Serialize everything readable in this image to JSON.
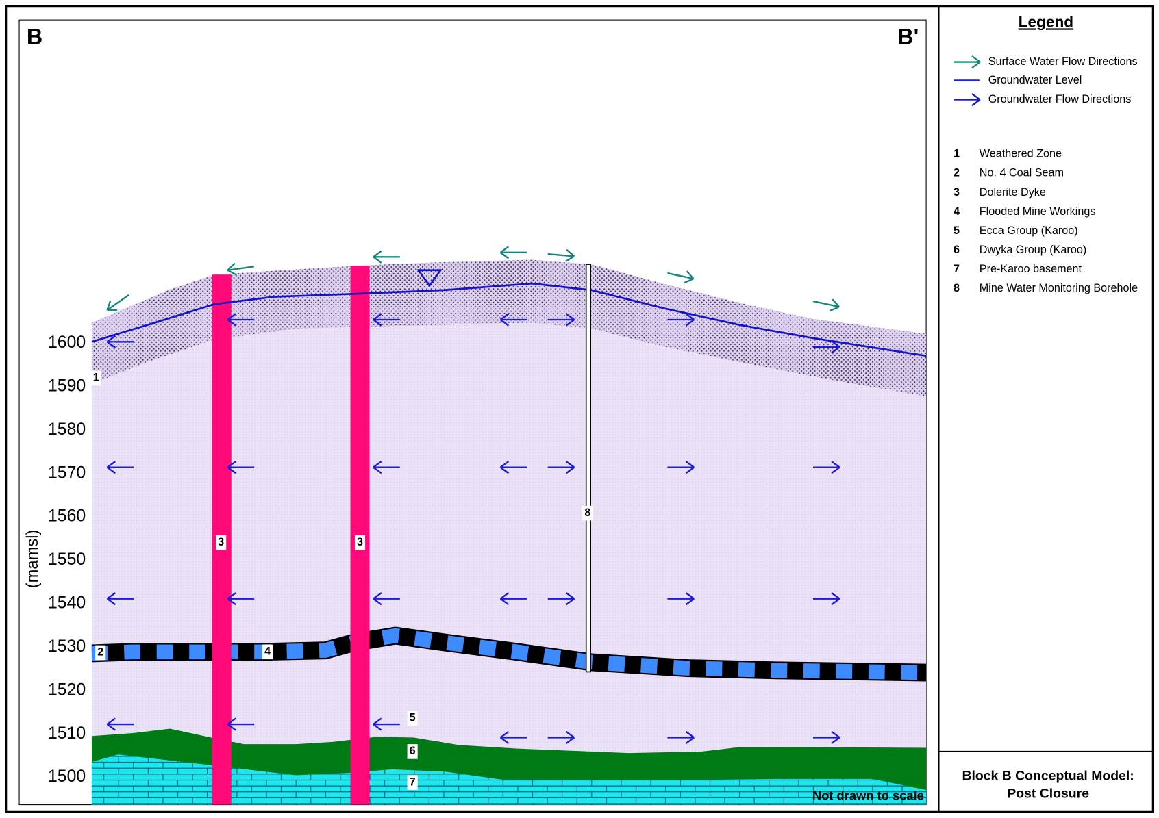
{
  "header": {
    "left": "B",
    "right": "B'"
  },
  "axis": {
    "label": "(mamsl)",
    "ticks": [
      1500,
      1510,
      1520,
      1530,
      1540,
      1550,
      1560,
      1570,
      1580,
      1590,
      1600
    ]
  },
  "section_labels": [
    "1",
    "2",
    "3",
    "3",
    "4",
    "5",
    "6",
    "7",
    "8"
  ],
  "note": "Not drawn to scale",
  "legend": {
    "title": "Legend",
    "symbols": [
      "Surface Water Flow Directions",
      "Groundwater Level",
      "Groundwater Flow Directions"
    ],
    "units": [
      {
        "number": "1",
        "name": "Weathered Zone"
      },
      {
        "number": "2",
        "name": "No. 4 Coal Seam"
      },
      {
        "number": "3",
        "name": "Dolerite Dyke"
      },
      {
        "number": "4",
        "name": "Flooded Mine Workings"
      },
      {
        "number": "5",
        "name": "Ecca Group (Karoo)"
      },
      {
        "number": "6",
        "name": "Dwyka Group (Karoo)"
      },
      {
        "number": "7",
        "name": "Pre-Karoo basement"
      },
      {
        "number": "8",
        "name": "Mine Water Monitoring Borehole"
      }
    ]
  },
  "caption": [
    "Block B Conceptual Model:",
    "Post Closure"
  ]
}
